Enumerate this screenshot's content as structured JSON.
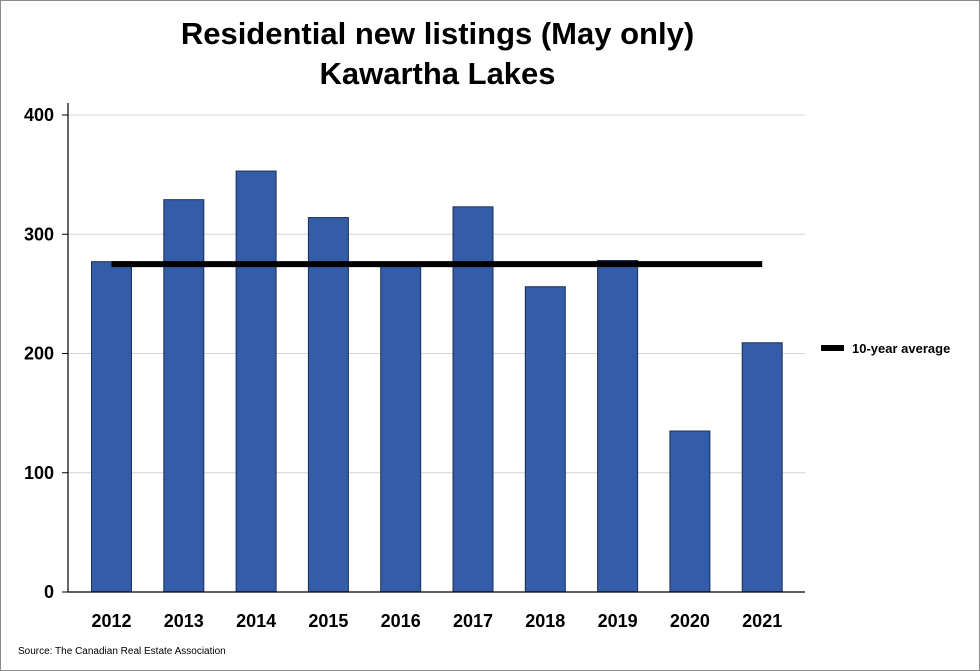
{
  "chart_data": {
    "type": "bar",
    "title": "Residential new listings (May only)",
    "subtitle": "Kawartha Lakes",
    "categories": [
      "2012",
      "2013",
      "2014",
      "2015",
      "2016",
      "2017",
      "2018",
      "2019",
      "2020",
      "2021"
    ],
    "series": [
      {
        "values": [
          277,
          329,
          353,
          314,
          275,
          323,
          256,
          278,
          135,
          209
        ],
        "color": "#335da8"
      }
    ],
    "reference_line": {
      "name": "10-year average",
      "value": 275,
      "color": "#000000"
    },
    "ylim": [
      0,
      400
    ],
    "yticks": [
      0,
      100,
      200,
      300,
      400
    ],
    "xlabel": "",
    "ylabel": "",
    "grid": true,
    "legend_position": "right"
  },
  "source": "Source: The Canadian Real Estate Association"
}
